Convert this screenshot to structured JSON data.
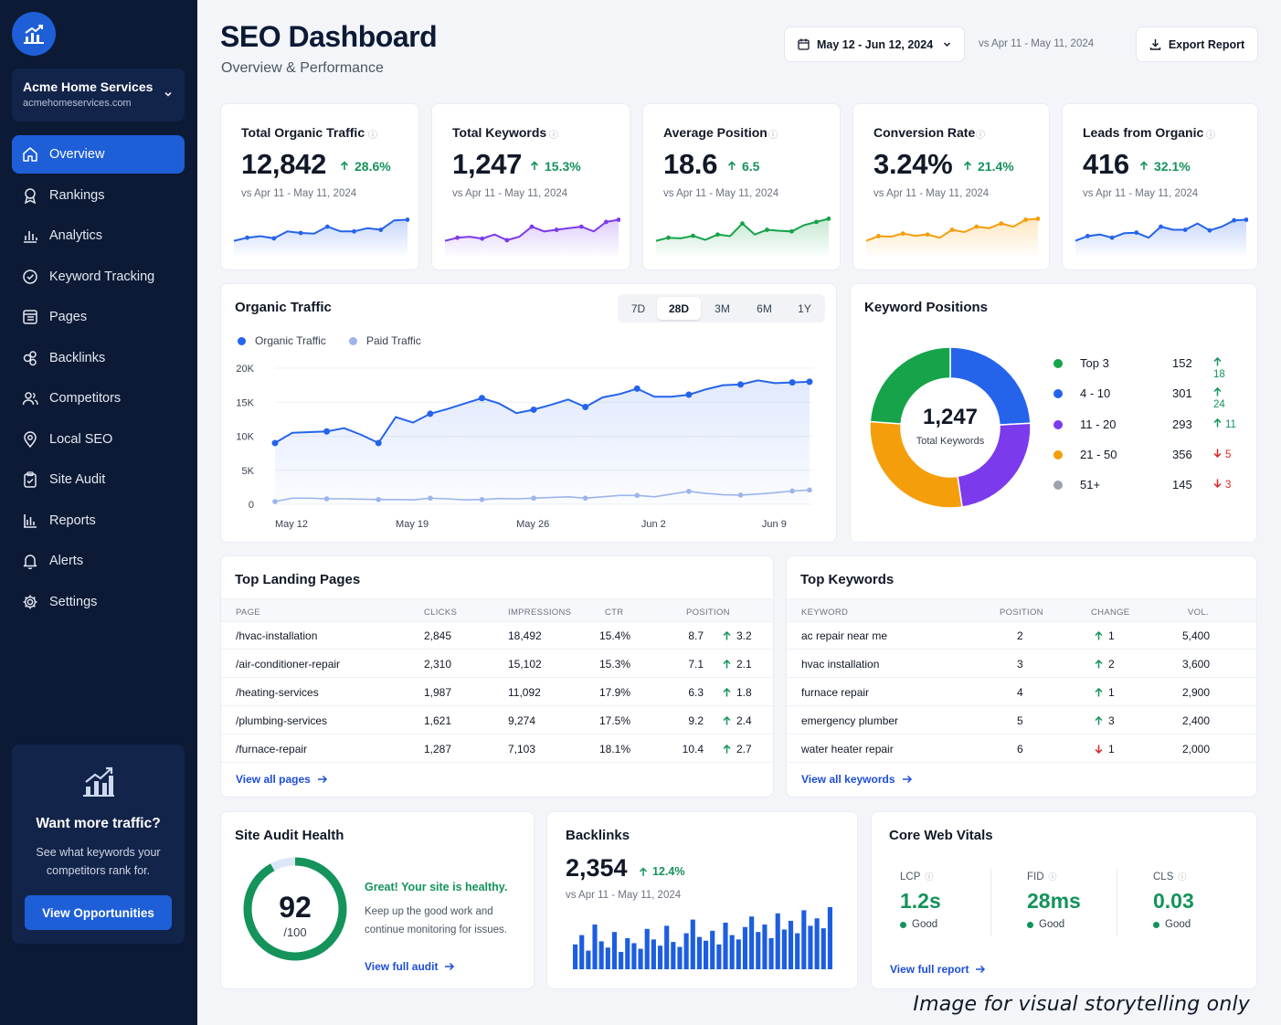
{
  "sidebar": {
    "account_name": "Acme Home Services",
    "account_domain": "acmehomeservices.com",
    "items": [
      {
        "label": "Overview",
        "icon": "home-icon",
        "active": true
      },
      {
        "label": "Rankings",
        "icon": "rankings-icon"
      },
      {
        "label": "Analytics",
        "icon": "bar-chart-icon"
      },
      {
        "label": "Keyword Tracking",
        "icon": "target-icon"
      },
      {
        "label": "Pages",
        "icon": "pages-icon"
      },
      {
        "label": "Backlinks",
        "icon": "link-icon"
      },
      {
        "label": "Competitors",
        "icon": "users-icon"
      },
      {
        "label": "Local SEO",
        "icon": "map-pin-icon"
      },
      {
        "label": "Site Audit",
        "icon": "clipboard-icon"
      },
      {
        "label": "Reports",
        "icon": "report-icon"
      },
      {
        "label": "Alerts",
        "icon": "bell-icon"
      },
      {
        "label": "Settings",
        "icon": "gear-icon"
      }
    ],
    "promo": {
      "title": "Want more traffic?",
      "text": "See what keywords your competitors rank for.",
      "button": "View Opportunities"
    }
  },
  "header": {
    "title": "SEO Dashboard",
    "subtitle": "Overview & Performance",
    "date_range": "May 12 - Jun 12, 2024",
    "compare_range": "vs Apr 11 - May 11, 2024",
    "export_label": "Export Report"
  },
  "kpis": [
    {
      "label": "Total Organic Traffic",
      "value": "12,842",
      "delta": "28.6%",
      "compare": "vs Apr 11 - May 11, 2024",
      "color": "#2563eb",
      "spark": [
        3,
        4,
        4.5,
        3.8,
        6,
        5.5,
        5.3,
        7.5,
        6,
        6,
        7,
        6.5,
        9.5,
        9.7
      ]
    },
    {
      "label": "Total Keywords",
      "value": "1,247",
      "delta": "15.3%",
      "compare": "vs Apr 11 - May 11, 2024",
      "color": "#7c3aed",
      "spark": [
        3,
        4,
        4.3,
        3.7,
        5,
        3.2,
        4.3,
        7.5,
        6,
        6.5,
        7,
        7.5,
        6,
        9,
        9.7
      ]
    },
    {
      "label": "Average Position",
      "value": "18.6",
      "delta": "6.5",
      "compare": "vs Apr 11 - May 11, 2024",
      "color": "#16a34a",
      "spark": [
        3,
        4,
        3.8,
        4.6,
        3.3,
        5,
        4.5,
        8.5,
        5,
        6.5,
        6.2,
        6,
        8,
        9,
        10
      ]
    },
    {
      "label": "Conversion Rate",
      "value": "3.24%",
      "delta": "21.4%",
      "compare": "vs Apr 11 - May 11, 2024",
      "color": "#f59e0b",
      "spark": [
        3,
        4.5,
        4.3,
        5.3,
        4.6,
        5,
        4,
        6.5,
        5.8,
        7.5,
        7,
        8.5,
        7.5,
        9.7,
        10
      ]
    },
    {
      "label": "Leads from Organic",
      "value": "416",
      "delta": "32.1%",
      "compare": "vs Apr 11 - May 11, 2024",
      "color": "#2563eb",
      "spark": [
        3,
        4.5,
        5,
        4,
        5.4,
        5.6,
        4,
        7.5,
        6.5,
        6.5,
        8.5,
        6.3,
        7.5,
        9.5,
        9.7
      ]
    }
  ],
  "organic": {
    "title": "Organic Traffic",
    "tabs": [
      "7D",
      "28D",
      "3M",
      "6M",
      "1Y"
    ],
    "active_tab": "28D",
    "legend": [
      "Organic Traffic",
      "Paid Traffic"
    ]
  },
  "keyword_positions": {
    "title": "Keyword Positions",
    "total": "1,247",
    "total_label": "Total Keywords",
    "rows": [
      {
        "label": "Top 3",
        "count": "152",
        "change": "18",
        "dir": "up",
        "color": "#16a34a"
      },
      {
        "label": "4 - 10",
        "count": "301",
        "change": "24",
        "dir": "up",
        "color": "#2563eb"
      },
      {
        "label": "11 - 20",
        "count": "293",
        "change": "11",
        "dir": "up",
        "color": "#7c3aed"
      },
      {
        "label": "21 - 50",
        "count": "356",
        "change": "5",
        "dir": "down",
        "color": "#f59e0b"
      },
      {
        "label": "51+",
        "count": "145",
        "change": "3",
        "dir": "down",
        "color": "#9ca3af"
      }
    ]
  },
  "landing_pages": {
    "title": "Top Landing Pages",
    "headers": [
      "PAGE",
      "CLICKS",
      "IMPRESSIONS",
      "CTR",
      "POSITION"
    ],
    "rows": [
      {
        "page": "/hvac-installation",
        "clicks": "2,845",
        "impressions": "18,492",
        "ctr": "15.4%",
        "position": "8.7",
        "change": "3.2"
      },
      {
        "page": "/air-conditioner-repair",
        "clicks": "2,310",
        "impressions": "15,102",
        "ctr": "15.3%",
        "position": "7.1",
        "change": "2.1"
      },
      {
        "page": "/heating-services",
        "clicks": "1,987",
        "impressions": "11,092",
        "ctr": "17.9%",
        "position": "6.3",
        "change": "1.8"
      },
      {
        "page": "/plumbing-services",
        "clicks": "1,621",
        "impressions": "9,274",
        "ctr": "17.5%",
        "position": "9.2",
        "change": "2.4"
      },
      {
        "page": "/furnace-repair",
        "clicks": "1,287",
        "impressions": "7,103",
        "ctr": "18.1%",
        "position": "10.4",
        "change": "2.7"
      }
    ],
    "link": "View all pages"
  },
  "top_keywords": {
    "title": "Top Keywords",
    "headers": [
      "KEYWORD",
      "POSITION",
      "CHANGE",
      "VOL."
    ],
    "rows": [
      {
        "keyword": "ac repair near me",
        "position": "2",
        "change": "1",
        "dir": "up",
        "vol": "5,400"
      },
      {
        "keyword": "hvac installation",
        "position": "3",
        "change": "2",
        "dir": "up",
        "vol": "3,600"
      },
      {
        "keyword": "furnace repair",
        "position": "4",
        "change": "1",
        "dir": "up",
        "vol": "2,900"
      },
      {
        "keyword": "emergency plumber",
        "position": "5",
        "change": "3",
        "dir": "up",
        "vol": "2,400"
      },
      {
        "keyword": "water heater repair",
        "position": "6",
        "change": "1",
        "dir": "down",
        "vol": "2,000"
      }
    ],
    "link": "View all keywords"
  },
  "site_audit": {
    "title": "Site Audit Health",
    "score": "92",
    "score_max": "/100",
    "score_fraction": 0.92,
    "headline": "Great! Your site is healthy.",
    "text": "Keep up the good work and continue monitoring for issues.",
    "link": "View full audit"
  },
  "backlinks": {
    "title": "Backlinks",
    "value": "2,354",
    "delta": "12.4%",
    "compare": "vs Apr 11 - May 11, 2024",
    "bars": [
      40,
      55,
      30,
      72,
      45,
      35,
      60,
      28,
      50,
      42,
      33,
      65,
      48,
      38,
      70,
      44,
      36,
      58,
      80,
      52,
      46,
      62,
      40,
      75,
      55,
      48,
      68,
      85,
      60,
      72,
      50,
      90,
      64,
      78,
      58,
      95,
      70,
      82,
      66,
      100
    ]
  },
  "core_web_vitals": {
    "title": "Core Web Vitals",
    "metrics": [
      {
        "label": "LCP",
        "value": "1.2s",
        "status": "Good"
      },
      {
        "label": "FID",
        "value": "28ms",
        "status": "Good"
      },
      {
        "label": "CLS",
        "value": "0.03",
        "status": "Good"
      }
    ],
    "link": "View full report"
  },
  "chart_data": {
    "type": "line",
    "title": "Organic Traffic",
    "x": [
      "May 12",
      "May 13",
      "May 14",
      "May 15",
      "May 16",
      "May 17",
      "May 18",
      "May 19",
      "May 20",
      "May 21",
      "May 22",
      "May 23",
      "May 24",
      "May 25",
      "May 26",
      "May 27",
      "May 28",
      "May 29",
      "May 30",
      "May 31",
      "Jun 1",
      "Jun 2",
      "Jun 3",
      "Jun 4",
      "Jun 5",
      "Jun 6",
      "Jun 7",
      "Jun 8",
      "Jun 9",
      "Jun 10",
      "Jun 11",
      "Jun 12"
    ],
    "xticks": [
      "May 12",
      "May 19",
      "May 26",
      "Jun 2",
      "Jun 9"
    ],
    "ylim": [
      0,
      20000
    ],
    "yticks": [
      "0",
      "5K",
      "10K",
      "15K",
      "20K"
    ],
    "grid": true,
    "legend": "top-left",
    "series": [
      {
        "name": "Organic Traffic",
        "color": "#2563eb",
        "values": [
          9000,
          10500,
          10600,
          10700,
          11200,
          10200,
          9000,
          12800,
          12000,
          13300,
          14000,
          14800,
          15600,
          14800,
          13400,
          13900,
          14600,
          15400,
          14300,
          15700,
          16200,
          17000,
          15800,
          15800,
          16100,
          16900,
          17500,
          17600,
          18200,
          17800,
          17900,
          18000
        ]
      },
      {
        "name": "Paid Traffic",
        "color": "#9db4ec",
        "values": [
          400,
          900,
          900,
          800,
          800,
          750,
          700,
          700,
          650,
          900,
          800,
          650,
          700,
          850,
          800,
          900,
          1000,
          1100,
          900,
          1100,
          1300,
          1300,
          1100,
          1500,
          1900,
          1600,
          1400,
          1350,
          1500,
          1700,
          1950,
          2100
        ]
      }
    ]
  }
}
